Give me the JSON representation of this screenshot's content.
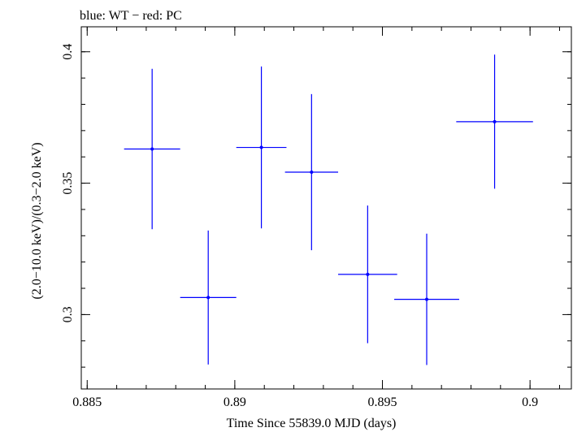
{
  "chart_data": {
    "type": "scatter",
    "title": "blue: WT − red: PC",
    "xlabel": "Time Since 55839.0 MJD (days)",
    "ylabel": "(2.0−10.0 keV)/(0.3−2.0 keV)",
    "xlim": [
      0.8848,
      0.9014
    ],
    "ylim": [
      0.2717,
      0.4095
    ],
    "xticks": [
      {
        "value": 0.885,
        "label": "0.885"
      },
      {
        "value": 0.89,
        "label": "0.89"
      },
      {
        "value": 0.895,
        "label": "0.895"
      },
      {
        "value": 0.9,
        "label": "0.9"
      }
    ],
    "yticks": [
      {
        "value": 0.3,
        "label": "0.3"
      },
      {
        "value": 0.35,
        "label": "0.35"
      },
      {
        "value": 0.4,
        "label": "0.4"
      }
    ],
    "x_minor_step": 0.001,
    "y_minor_step": 0.01,
    "series": [
      {
        "name": "WT",
        "color": "#0000ff",
        "points": [
          {
            "x": 0.8872,
            "y": 0.363,
            "xerr": 0.00095,
            "yerr": 0.0305
          },
          {
            "x": 0.8891,
            "y": 0.3065,
            "xerr": 0.00095,
            "yerr": 0.0255
          },
          {
            "x": 0.8909,
            "y": 0.3636,
            "xerr": 0.00085,
            "yerr": 0.0308
          },
          {
            "x": 0.8926,
            "y": 0.3542,
            "xerr": 0.0009,
            "yerr": 0.0297
          },
          {
            "x": 0.8945,
            "y": 0.3153,
            "xerr": 0.001,
            "yerr": 0.0262
          },
          {
            "x": 0.8965,
            "y": 0.3058,
            "xerr": 0.0011,
            "yerr": 0.025
          },
          {
            "x": 0.8988,
            "y": 0.3734,
            "xerr": 0.0013,
            "yerr": 0.0255
          }
        ]
      }
    ]
  }
}
